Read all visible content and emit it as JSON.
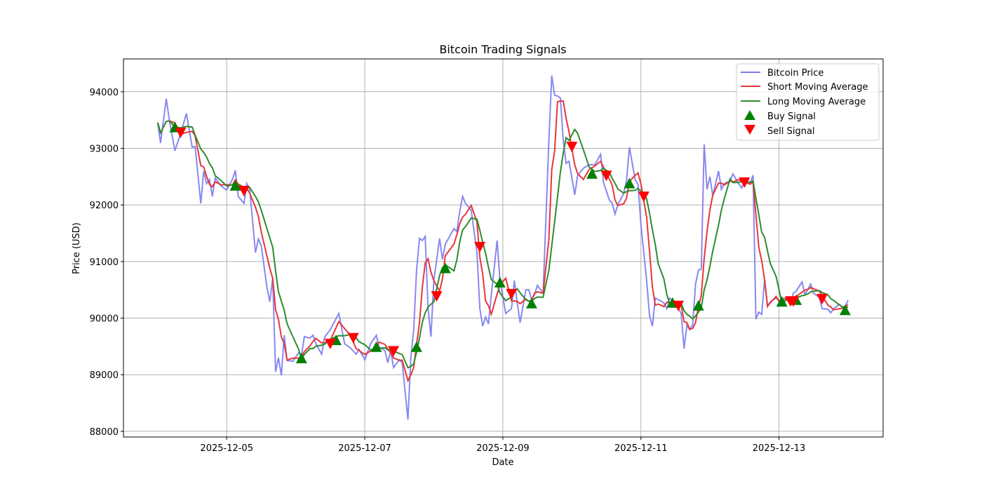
{
  "chart_data": {
    "type": "line",
    "title": "Bitcoin Trading Signals",
    "xlabel": "Date",
    "ylabel": "Price (USD)",
    "x_unit": "hours since 2025-12-04 00:00",
    "xlim": [
      -11.9,
      252.2
    ],
    "ylim": [
      87900,
      94580
    ],
    "grid": true,
    "legend_placement": "top-right",
    "x_ticks": [
      {
        "value": 24,
        "label": "2025-12-05"
      },
      {
        "value": 72,
        "label": "2025-12-07"
      },
      {
        "value": 120,
        "label": "2025-12-09"
      },
      {
        "value": 168,
        "label": "2025-12-11"
      },
      {
        "value": 216,
        "label": "2025-12-13"
      }
    ],
    "y_ticks": [
      88000,
      89000,
      90000,
      91000,
      92000,
      93000,
      94000
    ],
    "short_window_hours": 5,
    "long_window_hours": 10,
    "series": [
      {
        "name": "Bitcoin Price",
        "color": "#7b7bf0",
        "points": [
          [
            0,
            93455
          ],
          [
            1,
            93095
          ],
          [
            3,
            93876
          ],
          [
            4,
            93516
          ],
          [
            6,
            92958
          ],
          [
            8,
            93268
          ],
          [
            10,
            93616
          ],
          [
            12,
            93020
          ],
          [
            13,
            93033
          ],
          [
            15,
            92028
          ],
          [
            16,
            92600
          ],
          [
            17,
            92376
          ],
          [
            18,
            92450
          ],
          [
            19,
            92152
          ],
          [
            20,
            92475
          ],
          [
            22,
            92338
          ],
          [
            24,
            92264
          ],
          [
            26,
            92450
          ],
          [
            27,
            92611
          ],
          [
            28,
            92152
          ],
          [
            30,
            92028
          ],
          [
            31,
            92376
          ],
          [
            32,
            92276
          ],
          [
            34,
            91160
          ],
          [
            35,
            91396
          ],
          [
            36,
            91284
          ],
          [
            38,
            90540
          ],
          [
            39,
            90292
          ],
          [
            40,
            90702
          ],
          [
            41,
            89052
          ],
          [
            42,
            89300
          ],
          [
            43,
            88990
          ],
          [
            44,
            89697
          ],
          [
            45,
            89250
          ],
          [
            47,
            89238
          ],
          [
            49,
            89387
          ],
          [
            50,
            89338
          ],
          [
            51,
            89672
          ],
          [
            53,
            89648
          ],
          [
            54,
            89697
          ],
          [
            55,
            89548
          ],
          [
            57,
            89362
          ],
          [
            58,
            89660
          ],
          [
            60,
            89796
          ],
          [
            63,
            90082
          ],
          [
            65,
            89548
          ],
          [
            67,
            89474
          ],
          [
            69,
            89362
          ],
          [
            70,
            89449
          ],
          [
            72,
            89263
          ],
          [
            74,
            89548
          ],
          [
            76,
            89697
          ],
          [
            77,
            89486
          ],
          [
            79,
            89424
          ],
          [
            80,
            89214
          ],
          [
            81,
            89424
          ],
          [
            82,
            89127
          ],
          [
            84,
            89263
          ],
          [
            85,
            89214
          ],
          [
            87,
            88209
          ],
          [
            88,
            89300
          ],
          [
            89,
            89796
          ],
          [
            90,
            90850
          ],
          [
            91,
            91408
          ],
          [
            92,
            91371
          ],
          [
            93,
            91446
          ],
          [
            94,
            90168
          ],
          [
            95,
            89672
          ],
          [
            96,
            90664
          ],
          [
            98,
            91408
          ],
          [
            99,
            91036
          ],
          [
            100,
            91309
          ],
          [
            103,
            91582
          ],
          [
            104,
            91532
          ],
          [
            105,
            91880
          ],
          [
            106,
            92152
          ],
          [
            107,
            92028
          ],
          [
            109,
            91904
          ],
          [
            111,
            91160
          ],
          [
            112,
            90168
          ],
          [
            113,
            89858
          ],
          [
            114,
            90020
          ],
          [
            115,
            89896
          ],
          [
            116,
            90416
          ],
          [
            118,
            91371
          ],
          [
            119,
            90664
          ],
          [
            121,
            90082
          ],
          [
            123,
            90168
          ],
          [
            124,
            90664
          ],
          [
            125,
            90268
          ],
          [
            126,
            89920
          ],
          [
            128,
            90503
          ],
          [
            129,
            90503
          ],
          [
            130,
            90330
          ],
          [
            131,
            90416
          ],
          [
            132,
            90578
          ],
          [
            134,
            90441
          ],
          [
            136,
            93144
          ],
          [
            137,
            94285
          ],
          [
            138,
            93938
          ],
          [
            139,
            93926
          ],
          [
            140,
            93888
          ],
          [
            141,
            93144
          ],
          [
            142,
            92735
          ],
          [
            143,
            92772
          ],
          [
            145,
            92177
          ],
          [
            146,
            92524
          ],
          [
            148,
            92648
          ],
          [
            150,
            92710
          ],
          [
            152,
            92710
          ],
          [
            154,
            92896
          ],
          [
            155,
            92400
          ],
          [
            157,
            92090
          ],
          [
            158,
            92028
          ],
          [
            159,
            91842
          ],
          [
            160,
            92003
          ],
          [
            162,
            92202
          ],
          [
            163,
            92425
          ],
          [
            164,
            93020
          ],
          [
            166,
            92450
          ],
          [
            167,
            92363
          ],
          [
            168,
            91656
          ],
          [
            170,
            90664
          ],
          [
            171,
            90044
          ],
          [
            172,
            89858
          ],
          [
            173,
            90354
          ],
          [
            174,
            90330
          ],
          [
            176,
            90268
          ],
          [
            177,
            90168
          ],
          [
            178,
            90354
          ],
          [
            180,
            90268
          ],
          [
            182,
            90082
          ],
          [
            183,
            89462
          ],
          [
            184,
            89871
          ],
          [
            185,
            89796
          ],
          [
            186,
            89883
          ],
          [
            187,
            90602
          ],
          [
            188,
            90850
          ],
          [
            189,
            90863
          ],
          [
            190,
            93070
          ],
          [
            191,
            92276
          ],
          [
            192,
            92500
          ],
          [
            193,
            92165
          ],
          [
            195,
            92599
          ],
          [
            196,
            92276
          ],
          [
            197,
            92376
          ],
          [
            199,
            92425
          ],
          [
            200,
            92549
          ],
          [
            202,
            92376
          ],
          [
            203,
            92301
          ],
          [
            204,
            92400
          ],
          [
            206,
            92388
          ],
          [
            207,
            92524
          ],
          [
            208,
            89982
          ],
          [
            209,
            90106
          ],
          [
            210,
            90069
          ],
          [
            211,
            90689
          ],
          [
            212,
            90206
          ],
          [
            213,
            90292
          ],
          [
            215,
            90354
          ],
          [
            216,
            90317
          ],
          [
            217,
            90330
          ],
          [
            218,
            90354
          ],
          [
            220,
            90268
          ],
          [
            221,
            90441
          ],
          [
            222,
            90478
          ],
          [
            224,
            90640
          ],
          [
            225,
            90416
          ],
          [
            226,
            90503
          ],
          [
            227,
            90602
          ],
          [
            228,
            90441
          ],
          [
            230,
            90367
          ],
          [
            231,
            90168
          ],
          [
            233,
            90156
          ],
          [
            234,
            90094
          ],
          [
            235,
            90168
          ],
          [
            237,
            90243
          ],
          [
            238,
            90193
          ],
          [
            239,
            90206
          ],
          [
            240,
            90317
          ]
        ]
      },
      {
        "name": "Short Moving Average",
        "color": "#e8363a"
      },
      {
        "name": "Long Moving Average",
        "color": "#2e8b2e"
      }
    ],
    "buy_signals": {
      "name": "Buy Signal",
      "color": "#008000",
      "points": [
        [
          6,
          93370
        ],
        [
          27,
          92340
        ],
        [
          50,
          89290
        ],
        [
          62,
          89610
        ],
        [
          76,
          89490
        ],
        [
          90,
          89490
        ],
        [
          100,
          90880
        ],
        [
          119,
          90630
        ],
        [
          130,
          90260
        ],
        [
          151,
          92550
        ],
        [
          164,
          92380
        ],
        [
          179,
          90270
        ],
        [
          188,
          90220
        ],
        [
          217,
          90290
        ],
        [
          222,
          90320
        ],
        [
          239,
          90140
        ]
      ]
    },
    "sell_signals": {
      "name": "Sell Signal",
      "color": "#ff0000",
      "points": [
        [
          8,
          93280
        ],
        [
          30,
          92250
        ],
        [
          60,
          89550
        ],
        [
          68,
          89650
        ],
        [
          82,
          89420
        ],
        [
          97,
          90390
        ],
        [
          112,
          91260
        ],
        [
          123,
          90430
        ],
        [
          144,
          93030
        ],
        [
          156,
          92520
        ],
        [
          169,
          92150
        ],
        [
          181,
          90220
        ],
        [
          204,
          92400
        ],
        [
          220,
          90300
        ],
        [
          221,
          90300
        ],
        [
          231,
          90340
        ]
      ]
    }
  }
}
